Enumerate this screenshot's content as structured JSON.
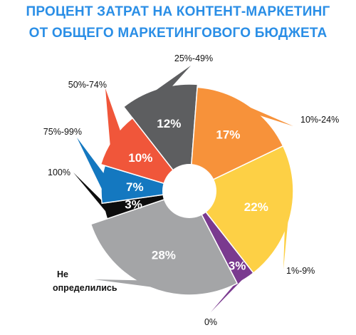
{
  "title": {
    "line1": "ПРОЦЕНТ ЗАТРАТ НА КОНТЕНТ-МАРКЕТИНГ",
    "line2": "ОТ ОБЩЕГО МАРКЕТИНГОВОГО БЮДЖЕТА"
  },
  "chart_data": {
    "type": "pie",
    "title": "ПРОЦЕНТ ЗАТРАТ НА КОНТЕНТ-МАРКЕТИНГ ОТ ОБЩЕГО МАРКЕТИНГОВОГО БЮДЖЕТА",
    "legend": "none",
    "slices": [
      {
        "label": "25%-49%",
        "value": 12,
        "value_label": "12%",
        "color": "#5d5e60"
      },
      {
        "label": "10%-24%",
        "value": 17,
        "value_label": "17%",
        "color": "#f7923a"
      },
      {
        "label": "1%-9%",
        "value": 22,
        "value_label": "22%",
        "color": "#fdd045"
      },
      {
        "label": "0%",
        "value": 3,
        "value_label": "3%",
        "color": "#7a3a8f"
      },
      {
        "label": "Не определились",
        "value": 28,
        "value_label": "28%",
        "color": "#a4a5a7"
      },
      {
        "label": "100%",
        "value": 3,
        "value_label": "3%",
        "color": "#0d0d0d"
      },
      {
        "label": "75%-99%",
        "value": 7,
        "value_label": "7%",
        "color": "#1478c0"
      },
      {
        "label": "50%-74%",
        "value": 10,
        "value_label": "10%",
        "color": "#f0563a"
      }
    ]
  }
}
